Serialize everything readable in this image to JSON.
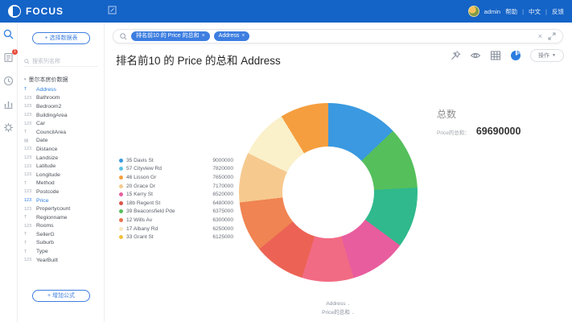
{
  "navbar": {
    "brand": "FOCUS",
    "user": "admin",
    "links": [
      "帮助",
      "中文",
      "反馈"
    ],
    "separator": "|"
  },
  "left_rail": {
    "icons": [
      {
        "name": "search-icon",
        "badge": ""
      },
      {
        "name": "searchbook-icon",
        "badge": "1"
      },
      {
        "name": "history-icon",
        "badge": ""
      },
      {
        "name": "datasource-icon",
        "badge": ""
      },
      {
        "name": "settings-icon",
        "badge": ""
      }
    ]
  },
  "sidebar": {
    "select_table_button": "+ 选择数据表",
    "search_placeholder": "搜索列名称",
    "table_name": "墨尔本房价数据",
    "add_formula_button": "+ 增加公式",
    "fields": [
      {
        "type": "text",
        "name": "Address",
        "selected": true
      },
      {
        "type": "number",
        "name": "Bathroom",
        "selected": false
      },
      {
        "type": "number",
        "name": "Bedroom2",
        "selected": false
      },
      {
        "type": "number",
        "name": "BuildingArea",
        "selected": false
      },
      {
        "type": "number",
        "name": "Car",
        "selected": false
      },
      {
        "type": "text",
        "name": "CouncilArea",
        "selected": false
      },
      {
        "type": "date",
        "name": "Date",
        "selected": false
      },
      {
        "type": "number",
        "name": "Distance",
        "selected": false
      },
      {
        "type": "number",
        "name": "Landsize",
        "selected": false
      },
      {
        "type": "number",
        "name": "Latitude",
        "selected": false
      },
      {
        "type": "number",
        "name": "Longitude",
        "selected": false
      },
      {
        "type": "text",
        "name": "Method",
        "selected": false
      },
      {
        "type": "number",
        "name": "Postcode",
        "selected": false
      },
      {
        "type": "number",
        "name": "Price",
        "selected": true
      },
      {
        "type": "number",
        "name": "Propertycount",
        "selected": false
      },
      {
        "type": "text",
        "name": "Regionname",
        "selected": false
      },
      {
        "type": "number",
        "name": "Rooms",
        "selected": false
      },
      {
        "type": "text",
        "name": "SellerG",
        "selected": false
      },
      {
        "type": "text",
        "name": "Suburb",
        "selected": false
      },
      {
        "type": "text",
        "name": "Type",
        "selected": false
      },
      {
        "type": "number",
        "name": "YearBuilt",
        "selected": false
      }
    ]
  },
  "search_bar": {
    "tags": [
      "排名前10 的 Price 的总和",
      "Address"
    ],
    "close_glyph": "×"
  },
  "main": {
    "title": "排名前10 的 Price 的总和 Address",
    "actions_button": "操作",
    "kpi": {
      "label": "总数",
      "metric": "Price的总和：",
      "value": "69690000"
    },
    "axis_x": "Address",
    "axis_y": "Price的总和",
    "axis_caret": "⌄"
  },
  "chart_data": {
    "type": "pie",
    "subtype": "donut",
    "title": "排名前10 的 Price 的总和 Address",
    "legend_position": "left",
    "total": 69690000,
    "categories": [
      "35 Davis St",
      "57 Cityview Rd",
      "46 Lisson Gr",
      "20 Grace Dr",
      "15 Kerry St",
      "18b Regent St",
      "39 Beaconsfield Pde",
      "12 Wills Av",
      "17 Albany Rd",
      "33 Grant St"
    ],
    "values": [
      9000000,
      7820000,
      7650000,
      7170000,
      6520000,
      6480000,
      6375000,
      6300000,
      6250000,
      6125000
    ],
    "legend_colors": [
      "#3a99e0",
      "#5bc2e7",
      "#f59e3f",
      "#f6c98f",
      "#e85d9e",
      "#dc5449",
      "#55bf5c",
      "#e8744d",
      "#f8e7be",
      "#f0c13f"
    ],
    "slice_colors_clockwise": [
      "#3a99e0",
      "#55bf5c",
      "#2fb98c",
      "#e85d9e",
      "#f26b84",
      "#ec6355",
      "#f08452",
      "#f6c98f",
      "#faf0ca",
      "#f59e3f"
    ],
    "xlabel": "Address",
    "ylabel": "Price的总和"
  }
}
